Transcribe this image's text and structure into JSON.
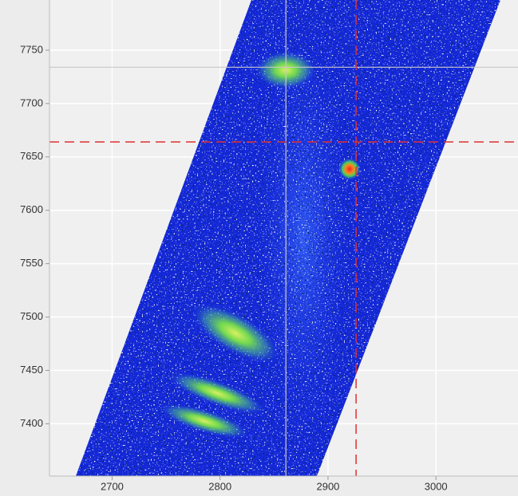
{
  "chart_data": {
    "type": "image",
    "xlim": [
      2642,
      3076
    ],
    "ylim": [
      7351,
      7797
    ],
    "xticks": [
      2700,
      2800,
      2900,
      3000
    ],
    "yticks": [
      7400,
      7450,
      7500,
      7550,
      7600,
      7650,
      7700,
      7750
    ],
    "grid": true,
    "crosshair": {
      "x": 2861,
      "y": 7734,
      "color": "#c8c8c8"
    },
    "cursor": {
      "x": 2926,
      "y": 7664,
      "color": "#e03030"
    }
  }
}
